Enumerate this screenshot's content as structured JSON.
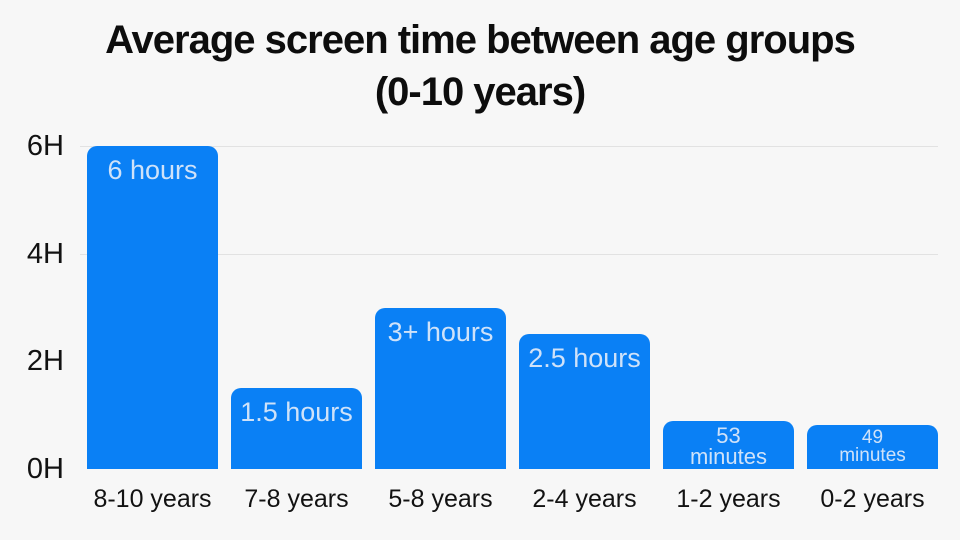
{
  "page": {
    "background": "#f7f7f7"
  },
  "title": {
    "line1": "Average screen time between age groups",
    "line2": "(0-10 years)"
  },
  "chart_data": {
    "type": "bar",
    "title": "Average screen time between age groups (0-10 years)",
    "categories": [
      "8-10 years",
      "7-8 years",
      "5-8 years",
      "2-4 years",
      "1-2 years",
      "0-2 years"
    ],
    "values_hours": [
      6,
      1.5,
      3,
      2.5,
      0.883,
      0.817
    ],
    "bar_labels": [
      "6 hours",
      "1.5 hours",
      "3+ hours",
      "2.5 hours",
      "53\nminutes",
      "49\nminutes"
    ],
    "y_ticks": [
      {
        "label": "6H",
        "hours": 6
      },
      {
        "label": "4H",
        "hours": 4
      },
      {
        "label": "2H",
        "hours": 2
      },
      {
        "label": "0H",
        "hours": 0
      }
    ],
    "ylim": [
      0,
      6
    ],
    "gridlines_at_hours": [
      6,
      4
    ],
    "legend": "none",
    "colors": {
      "bar": "#0a80f5",
      "bar_label": "#cfe2f9",
      "grid": "#e2e2e2",
      "axis_text": "#121212",
      "title_text": "#0d0d0d",
      "background": "#f7f7f7"
    }
  }
}
